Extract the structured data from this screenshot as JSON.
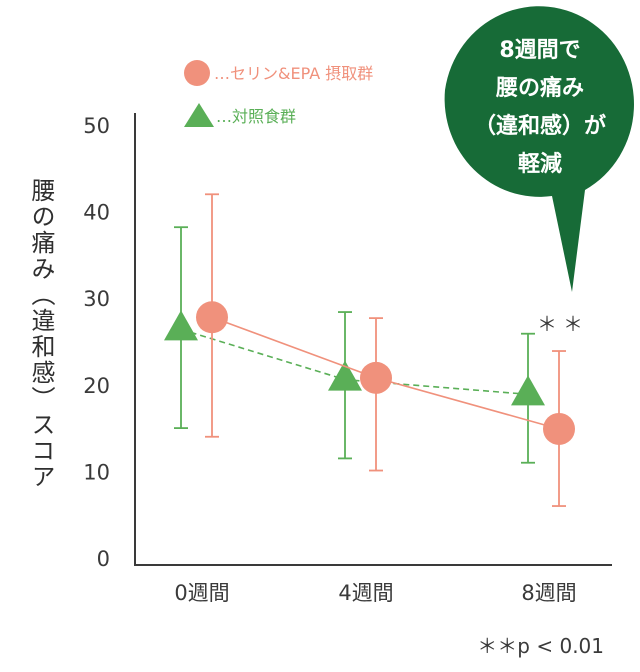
{
  "chart_data": {
    "type": "line",
    "categories": [
      "0週間",
      "4週間",
      "8週間"
    ],
    "series": [
      {
        "name": "…セリン&EPA 摂取群",
        "values": [
          27.8,
          20.8,
          14.9
        ],
        "error_low": [
          14.0,
          10.1,
          6.0
        ],
        "error_high": [
          42.0,
          27.7,
          23.9
        ],
        "color": "#f0917c",
        "marker": "circle",
        "line_style": "solid"
      },
      {
        "name": "…対照食群",
        "values": [
          26.4,
          20.6,
          18.9
        ],
        "error_low": [
          15.0,
          11.5,
          11.0
        ],
        "error_high": [
          38.2,
          28.4,
          25.9
        ],
        "color": "#5aaf57",
        "marker": "triangle",
        "line_style": "dashed"
      }
    ],
    "ylim": [
      0,
      50
    ],
    "yticks": [
      "0",
      "10",
      "20",
      "30",
      "40",
      "50"
    ],
    "ylabel": "腰の痛み（違和感）スコア",
    "xlabel": "",
    "significance": {
      "mark": "＊＊",
      "category": "8週間"
    },
    "footnote": "＊＊p < 0.01",
    "callout": {
      "lines": [
        "8週間で",
        "腰の痛み",
        "（違和感）が",
        "軽減"
      ],
      "color": "#176b37"
    },
    "legend_position": "top"
  }
}
